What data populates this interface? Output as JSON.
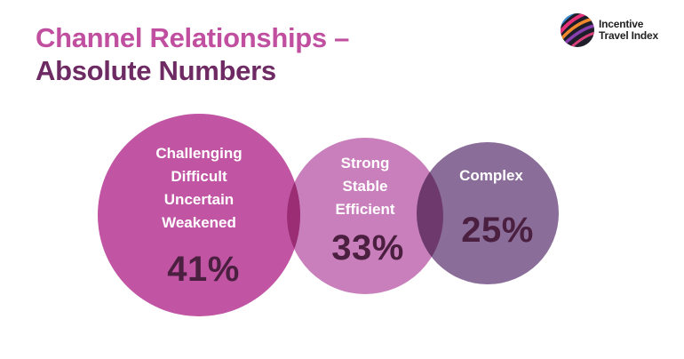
{
  "title": {
    "line1": "Channel Relationships –",
    "line2": "Absolute Numbers"
  },
  "logo": {
    "line1": "Incentive",
    "line2": "Travel Index"
  },
  "circles": [
    {
      "words": [
        "Challenging",
        "Difficult",
        "Uncertain",
        "Weakened"
      ],
      "percent": "41%",
      "color": "#c155a4"
    },
    {
      "words": [
        "Strong",
        "Stable",
        "Efficient"
      ],
      "percent": "33%",
      "color": "#c97fbb"
    },
    {
      "words": [
        "Complex"
      ],
      "percent": "25%",
      "color": "#8a6d99"
    }
  ],
  "overlap_colors": {
    "left": "#9a2d73",
    "right": "#6e3a6e"
  }
}
